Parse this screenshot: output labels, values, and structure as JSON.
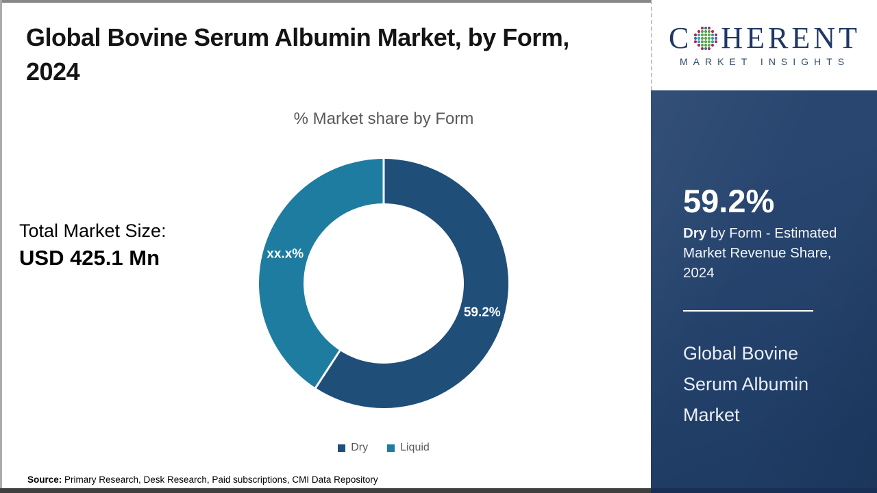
{
  "header": {
    "title": "Global Bovine Serum Albumin Market, by Form,\n2024"
  },
  "logo": {
    "name_prefix": "C",
    "name_suffix": "HERENT",
    "tagline": "MARKET INSIGHTS",
    "globe_icon": "dotted-globe-icon",
    "navy": "#1f3864"
  },
  "left_panel": {
    "total_label": "Total Market Size:",
    "total_value": "USD 425.1 Mn"
  },
  "chart_data": {
    "type": "pie",
    "donut": true,
    "title": "% Market share by Form",
    "legend_position": "bottom",
    "series": [
      {
        "name": "Dry",
        "value": 59.2,
        "label": "59.2%",
        "color": "#1F4E79"
      },
      {
        "name": "Liquid",
        "value": 40.8,
        "label": "xx.x%",
        "color": "#1E7CA1"
      }
    ]
  },
  "sidebar": {
    "bg_color": "#21406b",
    "stat_value": "59.2%",
    "stat_desc_highlight": "Dry",
    "stat_desc_rest": " by Form - Estimated Market Revenue Share, 2024",
    "market_name": "Global Bovine Serum Albumin Market"
  },
  "footer": {
    "source_label": "Source:",
    "source_text": " Primary Research, Desk Research, Paid subscriptions, CMI Data Repository"
  }
}
